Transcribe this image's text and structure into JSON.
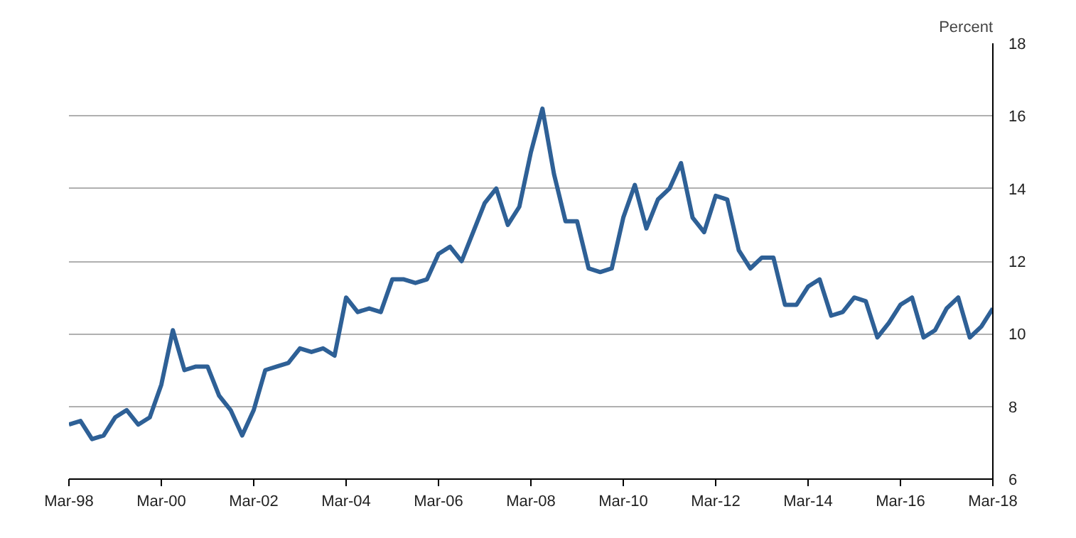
{
  "chart_data": {
    "type": "line",
    "ylabel": "Percent",
    "categories": [
      "Mar-98",
      null,
      null,
      null,
      null,
      null,
      null,
      null,
      "Mar-00",
      null,
      null,
      null,
      null,
      null,
      null,
      null,
      "Mar-02",
      null,
      null,
      null,
      null,
      null,
      null,
      null,
      "Mar-04",
      null,
      null,
      null,
      null,
      null,
      null,
      null,
      "Mar-06",
      null,
      null,
      null,
      null,
      null,
      null,
      null,
      "Mar-08",
      null,
      null,
      null,
      null,
      null,
      null,
      null,
      "Mar-10",
      null,
      null,
      null,
      null,
      null,
      null,
      null,
      "Mar-12",
      null,
      null,
      null,
      null,
      null,
      null,
      null,
      "Mar-14",
      null,
      null,
      null,
      null,
      null,
      null,
      null,
      "Mar-16",
      null,
      null,
      null,
      null,
      null,
      null,
      null,
      "Mar-18"
    ],
    "series": [
      {
        "color": "#2e6096",
        "values": [
          7.5,
          7.6,
          7.1,
          7.2,
          7.7,
          7.9,
          7.5,
          7.7,
          8.6,
          10.1,
          9.0,
          9.1,
          9.1,
          8.3,
          7.9,
          7.2,
          7.9,
          9.0,
          9.1,
          9.2,
          9.6,
          9.5,
          9.6,
          9.4,
          11.0,
          10.6,
          10.7,
          10.6,
          11.5,
          11.5,
          11.4,
          11.5,
          12.2,
          12.4,
          12.0,
          12.8,
          13.6,
          14.0,
          13.0,
          13.5,
          15.0,
          16.2,
          14.4,
          13.1,
          13.1,
          11.8,
          11.7,
          11.8,
          13.2,
          14.1,
          12.9,
          13.7,
          14.0,
          14.7,
          13.2,
          12.8,
          13.8,
          13.7,
          12.3,
          11.8,
          12.1,
          12.1,
          10.8,
          10.8,
          11.3,
          11.5,
          10.5,
          10.6,
          11.0,
          10.9,
          9.9,
          10.3,
          10.8,
          11.0,
          9.9,
          10.1,
          10.7,
          11.0,
          9.9,
          10.2,
          10.7
        ]
      }
    ],
    "ylim": [
      6,
      18
    ],
    "yticks": [
      6,
      8,
      10,
      12,
      14,
      16,
      18
    ],
    "grid": "y",
    "marker": "none",
    "line_style": "solid"
  }
}
